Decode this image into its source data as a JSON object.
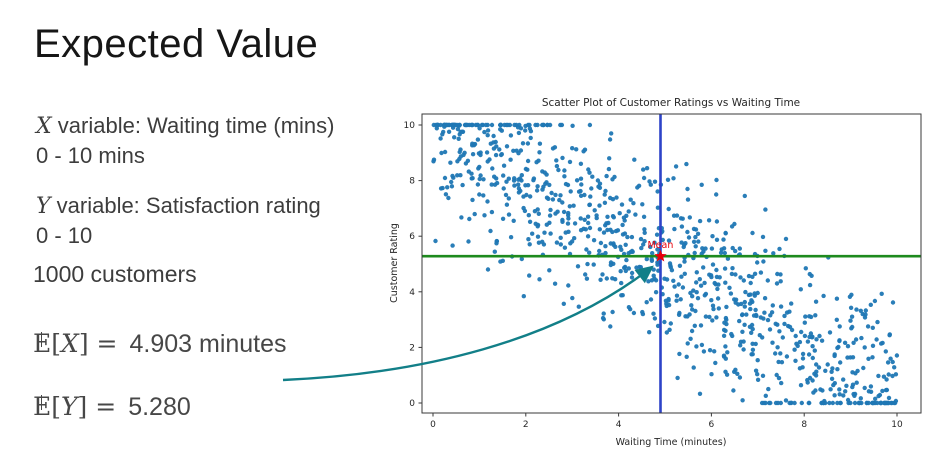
{
  "slide": {
    "title": "Expected Value",
    "bullets": [
      {
        "var": "X",
        "text": " variable: Waiting time (mins)",
        "sub": "0 - 10 mins"
      },
      {
        "var": "Y",
        "text": " variable: Satisfaction rating",
        "sub": "0 - 10"
      }
    ],
    "count_line": "1000 customers",
    "expectations": [
      {
        "e": "E",
        "open": "[",
        "var": "X",
        "close": "] =",
        "value": "4.903 minutes"
      },
      {
        "e": "E",
        "open": "[",
        "var": "Y",
        "close": "] =",
        "value": "5.280"
      }
    ]
  },
  "chart_data": {
    "type": "scatter",
    "title": "Scatter Plot of Customer Ratings vs Waiting Time",
    "xlabel": "Waiting Time (minutes)",
    "ylabel": "Customer Rating",
    "xlim": [
      -0.5,
      10.5
    ],
    "ylim": [
      -0.5,
      10.5
    ],
    "x_ticks": [
      0,
      2,
      4,
      6,
      8,
      10
    ],
    "y_ticks": [
      0,
      2,
      4,
      6,
      8,
      10
    ],
    "n_points": 1000,
    "generator": "x ~ uniform(0,10); y = clamp(10 - x + bell_noise, 0, 10); values clipped rows visible at y=0 and y=10",
    "seed": 42,
    "noise_scale": 3.33,
    "point_color": "#1f77b4",
    "frame_color": "#3a3a3a",
    "mean_x": 4.903,
    "mean_y": 5.28,
    "vline": {
      "x": 4.903,
      "color": "#2d43c8"
    },
    "hline": {
      "y": 5.28,
      "color": "#1e8a1e"
    },
    "mean_label": "Mean",
    "mean_label_color": "#e8000b",
    "mean_marker_color": "#e8000b",
    "annotation_arrow_color": "#127f88",
    "grid": false,
    "legend": "none"
  }
}
